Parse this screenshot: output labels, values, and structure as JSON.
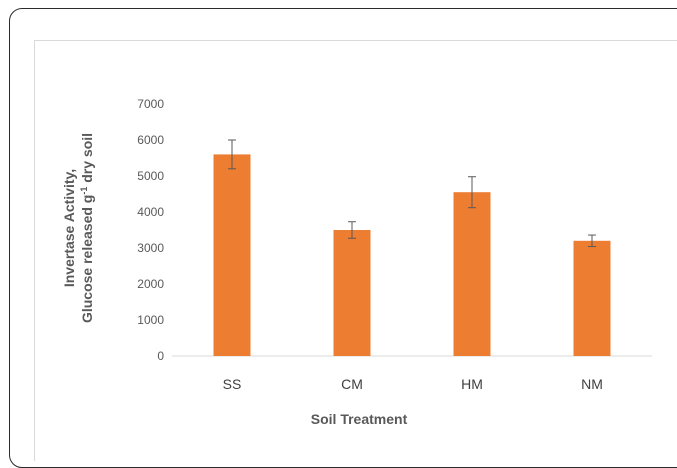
{
  "chart_data": {
    "type": "bar",
    "categories": [
      "SS",
      "CM",
      "HM",
      "NM"
    ],
    "values": [
      5600,
      3500,
      4550,
      3200
    ],
    "error": [
      400,
      230,
      430,
      160
    ],
    "xlabel": "Soil Treatment",
    "ylabel_line1": "Invertase Activity,",
    "ylabel_line2_pre": "Glucose released g",
    "ylabel_sup": "-1",
    "ylabel_line2_post": " dry soil",
    "yticks": [
      0,
      1000,
      2000,
      3000,
      4000,
      5000,
      6000,
      7000
    ],
    "ylim": [
      0,
      7000
    ],
    "grid": false,
    "bar_color": "#ED7D31",
    "error_color": "#595959"
  }
}
